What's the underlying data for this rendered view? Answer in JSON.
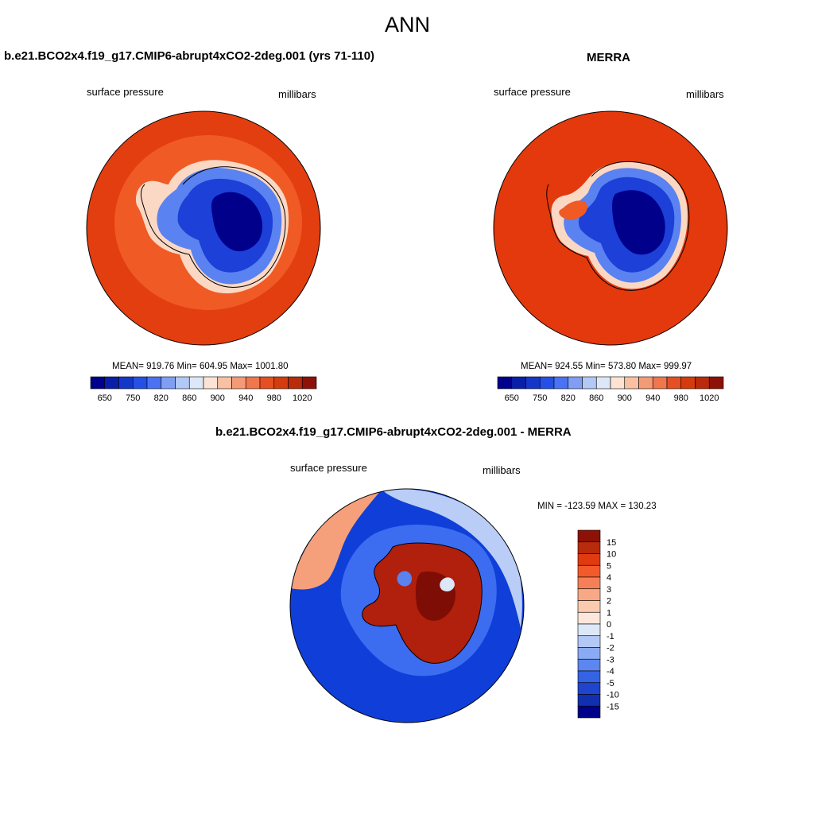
{
  "figure": {
    "title": "ANN"
  },
  "panel_model": {
    "title": "b.e21.BCO2x4.f19_g17.CMIP6-abrupt4xCO2-2deg.001 (yrs 71-110)",
    "variable": "surface pressure",
    "units": "millibars",
    "stats": "MEAN= 919.76  Min= 604.95  Max= 1001.80"
  },
  "panel_obs": {
    "title": "MERRA",
    "variable": "surface pressure",
    "units": "millibars",
    "stats": "MEAN= 924.55  Min= 573.80  Max= 999.97"
  },
  "panel_diff": {
    "title": "b.e21.BCO2x4.f19_g17.CMIP6-abrupt4xCO2-2deg.001 - MERRA",
    "variable": "surface pressure",
    "units": "millibars",
    "stats": "MIN = -123.59 MAX = 130.23"
  },
  "colorbar_abs": {
    "colors": [
      "#00008b",
      "#0a1fa8",
      "#1537c8",
      "#2550e6",
      "#4a72f2",
      "#7f9ef4",
      "#b2c8f6",
      "#dce8f7",
      "#fde3d4",
      "#f9c0a2",
      "#f59a76",
      "#f0764e",
      "#e54f22",
      "#d43b0e",
      "#b82b0b",
      "#8e1108"
    ],
    "tick_labels": [
      "650",
      "750",
      "820",
      "860",
      "900",
      "940",
      "980",
      "1020"
    ]
  },
  "colorbar_diff": {
    "colors": [
      "#8e1108",
      "#b82b0b",
      "#e03a10",
      "#f25a2c",
      "#f58057",
      "#f8a885",
      "#fbcbb0",
      "#fde7da",
      "#dce8f7",
      "#b2c8f6",
      "#8aaaf3",
      "#5c86f0",
      "#3563e6",
      "#1f45cf",
      "#1030b0",
      "#00008b"
    ],
    "tick_labels": [
      "15",
      "10",
      "5",
      "4",
      "3",
      "2",
      "1",
      "0",
      "-1",
      "-2",
      "-3",
      "-4",
      "-5",
      "-10",
      "-15"
    ]
  },
  "map_colors": {
    "ocean_model_inner": "#f05a24",
    "ocean_model_outer": "#e33e0f",
    "ocean_obs": "#e3390d",
    "ice_deep": "#00008b",
    "ice_mid": "#1c40d8",
    "ice_light": "#5a82f0",
    "ice_pale": "#c9d9f6",
    "coast_pink": "#fbd8c4",
    "diff_ocean": "#0f3fd8",
    "diff_ocean_light": "#3c6cf0",
    "diff_pale": "#b9cdf6",
    "diff_warm": "#f5a07a",
    "diff_land": "#b0200c",
    "diff_land_deep": "#7e0d06"
  }
}
